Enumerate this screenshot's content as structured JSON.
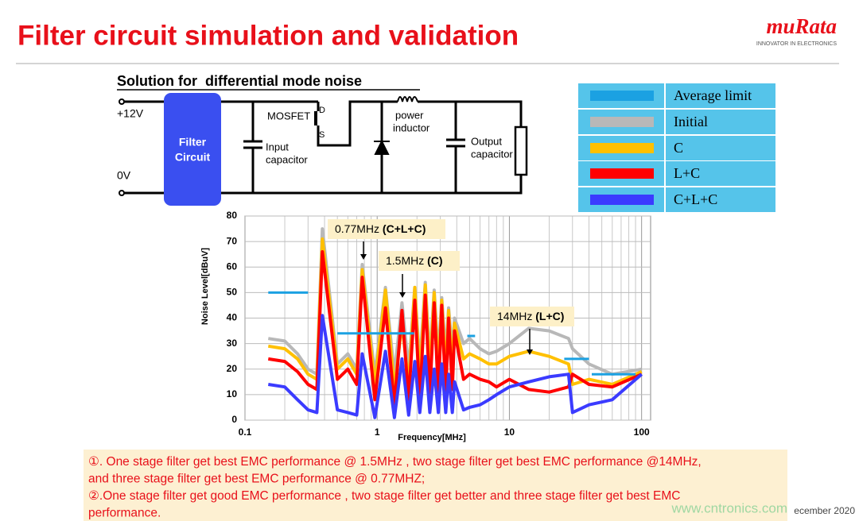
{
  "header": {
    "title": "Filter circuit simulation and validation",
    "logo": "muRata",
    "tagline": "INNOVATOR IN ELECTRONICS"
  },
  "circuit": {
    "title": "Solution for  differential mode noise",
    "plus": "+12V",
    "zero": "0V",
    "filter": [
      "Filter",
      "Circuit"
    ],
    "mosfet": "MOSFET",
    "drain": "D",
    "source": "S",
    "input_cap": [
      "Input",
      "capacitor"
    ],
    "inductor": [
      "power",
      "inductor"
    ],
    "output_cap": [
      "Output",
      "capacitor"
    ]
  },
  "chart_data": {
    "type": "line",
    "x_label": "Frequency[MHz]",
    "y_label": "Noise Level[dBuV]",
    "xscale": "log",
    "xlim": [
      0.1,
      117
    ],
    "ylim": [
      0,
      80
    ],
    "xticks": [
      0.1,
      1,
      10,
      100
    ],
    "xminor": [
      0.2,
      0.3,
      0.4,
      0.5,
      0.6,
      0.7,
      0.8,
      0.9,
      2,
      3,
      4,
      5,
      6,
      7,
      8,
      9,
      20,
      30,
      40,
      50,
      60,
      70,
      80,
      90
    ],
    "yticks": [
      0,
      10,
      20,
      30,
      40,
      50,
      60,
      70,
      80
    ],
    "grid": true,
    "x": [
      0.15,
      0.2,
      0.25,
      0.3,
      0.35,
      0.385,
      0.5,
      0.6,
      0.7,
      0.77,
      0.96,
      1.155,
      1.35,
      1.54,
      1.73,
      1.925,
      2.1,
      2.31,
      2.5,
      2.7,
      2.9,
      3.08,
      3.3,
      3.47,
      3.7,
      3.85,
      4.5,
      5,
      6,
      7,
      8,
      10,
      14,
      20,
      28,
      30,
      40,
      60,
      100
    ],
    "series": [
      {
        "name": "Average limit",
        "color": "#1ba1e2",
        "x": [
          0.15,
          0.3,
          0.4,
          0.5,
          1.9,
          3.5,
          4.8,
          5.5,
          15,
          26,
          40,
          41,
          42,
          90
        ],
        "values": [
          50,
          50,
          null,
          34,
          34,
          null,
          33,
          33,
          null,
          24,
          24,
          null,
          18,
          18
        ]
      },
      {
        "name": "Initial",
        "color": "#b8b8b8",
        "values": [
          32,
          31,
          26,
          20,
          18,
          75,
          22,
          26,
          20,
          61,
          18,
          52,
          18,
          46,
          20,
          52,
          22,
          54,
          24,
          51,
          25,
          48,
          26,
          44,
          27,
          40,
          30,
          32,
          28,
          26,
          27,
          30,
          36,
          35,
          32,
          28,
          22,
          18,
          20
        ]
      },
      {
        "name": "C",
        "color": "#ffc000",
        "values": [
          29,
          28,
          24,
          18,
          16,
          71,
          20,
          24,
          18,
          59,
          14,
          51,
          12,
          38,
          14,
          52,
          16,
          53,
          18,
          50,
          18,
          47,
          18,
          43,
          20,
          38,
          24,
          26,
          24,
          22,
          22,
          25,
          27,
          25,
          22,
          14,
          16,
          14,
          19
        ]
      },
      {
        "name": "L+C",
        "color": "#ff0000",
        "values": [
          24,
          23,
          19,
          14,
          12,
          66,
          16,
          20,
          14,
          56,
          8,
          44,
          6,
          43,
          8,
          47,
          8,
          49,
          10,
          46,
          10,
          45,
          10,
          40,
          12,
          35,
          16,
          18,
          16,
          15,
          13,
          16,
          12,
          11,
          13,
          18,
          14,
          13,
          18
        ]
      },
      {
        "name": "C+L+C",
        "color": "#3b3bff",
        "values": [
          14,
          13,
          8,
          4,
          3,
          41,
          4,
          3,
          2,
          26,
          1,
          27,
          1,
          24,
          2,
          23,
          3,
          25,
          3,
          20,
          3,
          22,
          3,
          18,
          3,
          15,
          4,
          5,
          6,
          8,
          10,
          13,
          15,
          17,
          18,
          3,
          6,
          8,
          18
        ]
      }
    ],
    "annotations": [
      {
        "text": "0.77MHz",
        "emphasis": "(C+L+C)"
      },
      {
        "text": "1.5MHz",
        "emphasis": "(C)"
      },
      {
        "text": "14MHz",
        "emphasis": "(L+C)"
      }
    ]
  },
  "notes": [
    "①. One stage filter get best EMC performance @ 1.5MHz , two stage filter get best EMC performance @14MHz,",
    "and three stage filter get best EMC performance @ 0.77MHZ;",
    "②.One stage filter get good EMC performance , two stage filter get better and three stage filter get best EMC",
    "performance."
  ],
  "footer": {
    "date": "ecember 2020",
    "watermark": "www.cntronics.com"
  }
}
